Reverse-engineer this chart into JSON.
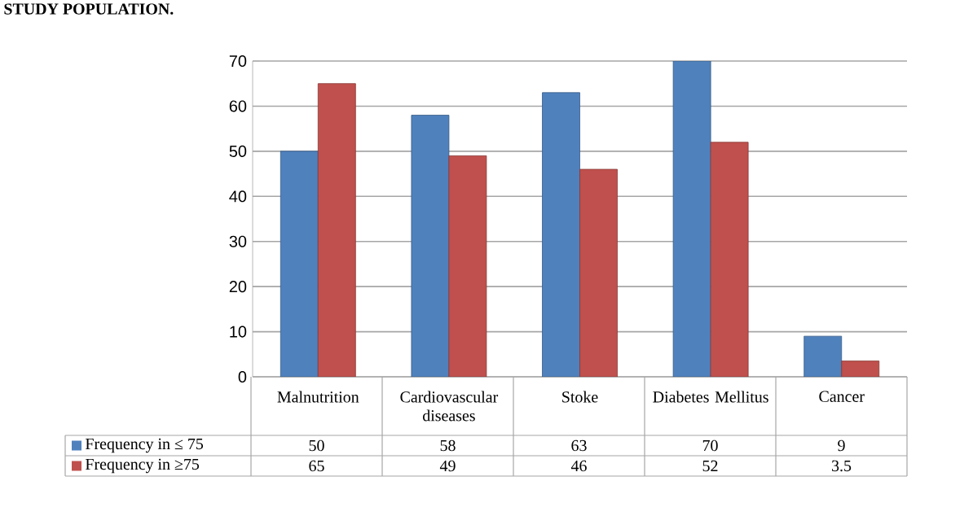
{
  "chart_data": {
    "type": "bar",
    "title": "STUDY POPULATION.",
    "categories": [
      "Malnutrition",
      "Cardiovascular diseases",
      "Stoke",
      "Diabetes Mellitus",
      "Cancer"
    ],
    "series": [
      {
        "name": "Frequency in ≤ 75",
        "color": "#4f81bd",
        "values": [
          50,
          58,
          63,
          70,
          9
        ]
      },
      {
        "name": "Frequency in ≥75",
        "color": "#c0504d",
        "values": [
          65,
          49,
          46,
          52,
          3.5
        ]
      }
    ],
    "ylim": [
      0,
      70
    ],
    "yticks": [
      0,
      10,
      20,
      30,
      40,
      50,
      60,
      70
    ],
    "grid": "y",
    "legend": "bottom",
    "data_labels": true
  }
}
